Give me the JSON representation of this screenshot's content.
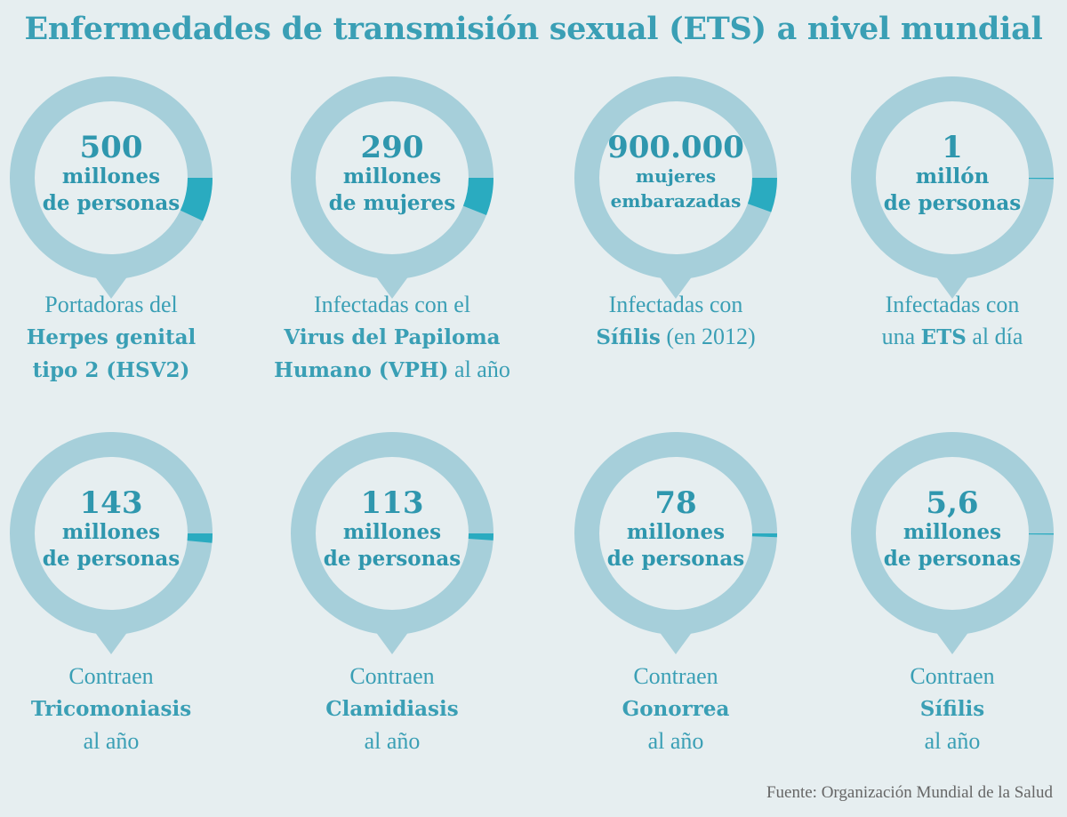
{
  "title": "Enfermedades de transmisión sexual (ETS) a nivel mundial",
  "colors": {
    "background": "#e6eef0",
    "ring": "#a6cfda",
    "segment": "#2aabc0",
    "text": "#2f97ae"
  },
  "items": [
    {
      "value": "500",
      "unit": [
        "millones",
        "de personas"
      ],
      "segment_fraction": 0.07,
      "caption": [
        [
          {
            "t": "Portadoras del",
            "b": false
          }
        ],
        [
          {
            "t": "Herpes genital",
            "b": true
          }
        ],
        [
          {
            "t": "tipo 2 (HSV2)",
            "b": true
          }
        ]
      ]
    },
    {
      "value": "290",
      "unit": [
        "millones",
        "de mujeres"
      ],
      "segment_fraction": 0.06,
      "caption": [
        [
          {
            "t": "Infectadas con el",
            "b": false
          }
        ],
        [
          {
            "t": "Virus del Papiloma",
            "b": true
          }
        ],
        [
          {
            "t": "Humano (VPH)",
            "b": true
          },
          {
            "t": " al año",
            "b": false
          }
        ]
      ]
    },
    {
      "value": "900.000",
      "unit": [
        "mujeres",
        "embarazadas"
      ],
      "segment_fraction": 0.055,
      "caption": [
        [
          {
            "t": "Infectadas con",
            "b": false
          }
        ],
        [
          {
            "t": "Sífilis",
            "b": true
          },
          {
            "t": " (en 2012)",
            "b": false
          }
        ]
      ]
    },
    {
      "value": "1",
      "unit": [
        "millón",
        "de personas"
      ],
      "segment_fraction": 0.002,
      "caption": [
        [
          {
            "t": "Infectadas con",
            "b": false
          }
        ],
        [
          {
            "t": "una ",
            "b": false
          },
          {
            "t": "ETS",
            "b": true
          },
          {
            "t": " al día",
            "b": false
          }
        ]
      ]
    },
    {
      "value": "143",
      "unit": [
        "millones",
        "de personas"
      ],
      "segment_fraction": 0.015,
      "caption": [
        [
          {
            "t": "Contraen",
            "b": false
          }
        ],
        [
          {
            "t": "Tricomoniasis",
            "b": true
          }
        ],
        [
          {
            "t": "al año",
            "b": false
          }
        ]
      ]
    },
    {
      "value": "113",
      "unit": [
        "millones",
        "de personas"
      ],
      "segment_fraction": 0.011,
      "caption": [
        [
          {
            "t": "Contraen",
            "b": false
          }
        ],
        [
          {
            "t": "Clamidiasis",
            "b": true
          }
        ],
        [
          {
            "t": "al año",
            "b": false
          }
        ]
      ]
    },
    {
      "value": "78",
      "unit": [
        "millones",
        "de personas"
      ],
      "segment_fraction": 0.006,
      "caption": [
        [
          {
            "t": "Contraen",
            "b": false
          }
        ],
        [
          {
            "t": "Gonorrea",
            "b": true
          }
        ],
        [
          {
            "t": "al año",
            "b": false
          }
        ]
      ]
    },
    {
      "value": "5,6",
      "unit": [
        "millones",
        "de personas"
      ],
      "segment_fraction": 0.002,
      "caption": [
        [
          {
            "t": "Contraen",
            "b": false
          }
        ],
        [
          {
            "t": "Sífilis",
            "b": true
          }
        ],
        [
          {
            "t": "al año",
            "b": false
          }
        ]
      ]
    }
  ],
  "source": "Fuente: Organización Mundial de la Salud"
}
